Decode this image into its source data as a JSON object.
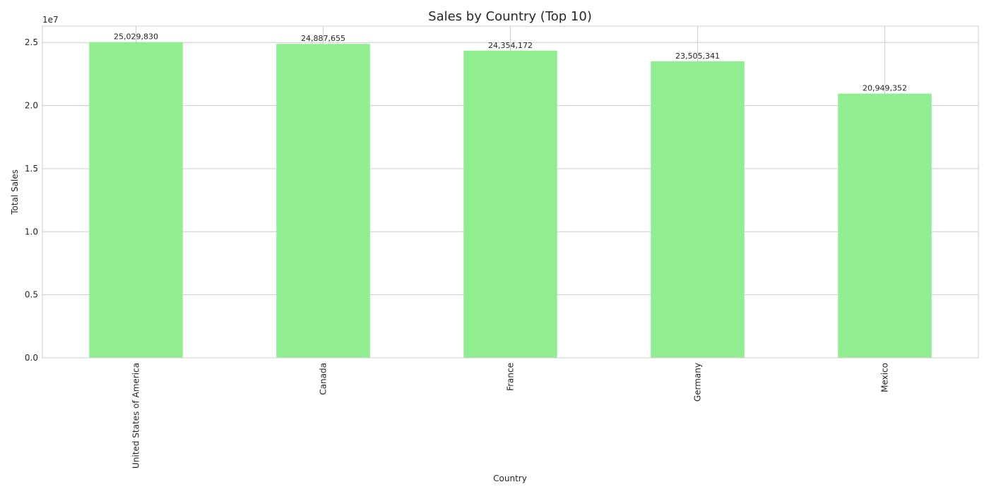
{
  "chart_data": {
    "type": "bar",
    "title": "Sales by Country (Top 10)",
    "xlabel": "Country",
    "ylabel": "Total Sales",
    "y_offset_text": "1e7",
    "y_scale": 10000000,
    "categories": [
      "United States of America",
      "Canada",
      "France",
      "Germany",
      "Mexico"
    ],
    "values": [
      25029830,
      24887655,
      24354172,
      23505341,
      20949352
    ],
    "data_labels": [
      "25,029,830",
      "24,887,655",
      "24,354,172",
      "23,505,341",
      "20,949,352"
    ],
    "ylim": [
      0,
      26300000
    ],
    "yticks": [
      0,
      5000000,
      10000000,
      15000000,
      20000000,
      25000000
    ],
    "ytick_labels": [
      "0.0",
      "0.5",
      "1.0",
      "1.5",
      "2.0",
      "2.5"
    ],
    "bar_color": "#90ee90",
    "grid": true,
    "legend": "none"
  }
}
